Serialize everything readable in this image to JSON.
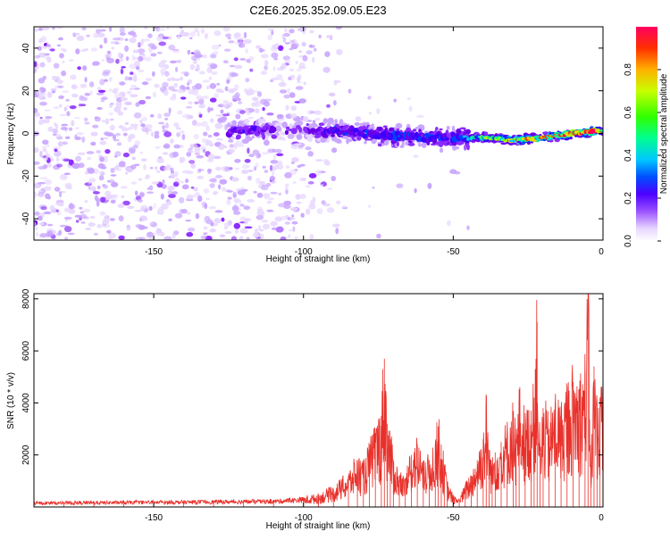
{
  "title": "C2E6.2025.352.09.05.E23",
  "colorbar": {
    "label": "Normalized spectral amplitude",
    "ticks": [
      0.0,
      0.2,
      0.4,
      0.6,
      0.8
    ],
    "tick_labels": [
      "0.0",
      "0.2",
      "0.4",
      "0.6",
      "0.8"
    ],
    "range": [
      0,
      1
    ]
  },
  "chart_data": [
    {
      "type": "heatmap",
      "xlabel": "Height of straight line (km)",
      "ylabel": "Frequency (Hz)",
      "xlim": [
        -190,
        0
      ],
      "ylim": [
        -50,
        50
      ],
      "xticks": [
        -150,
        -100,
        -50,
        0
      ],
      "xtick_labels": [
        "-150",
        "-100",
        "-50",
        "0"
      ],
      "yticks": [
        -40,
        -20,
        0,
        20,
        40
      ],
      "ytick_labels": [
        "-40",
        "-20",
        "0",
        "20",
        "40"
      ],
      "colormap": [
        "#ffffff",
        "#e8d8ff",
        "#c9a6ff",
        "#8a2bff",
        "#6a00e8",
        "#3c00ff",
        "#0040ff",
        "#00c8ff",
        "#00ff90",
        "#a0ff00",
        "#ffd000",
        "#ff4000",
        "#ff0050"
      ],
      "ridge": [
        {
          "x": -125,
          "y": 1,
          "amp": 0.35
        },
        {
          "x": -100,
          "y": 2,
          "amp": 0.25
        },
        {
          "x": -90,
          "y": 1,
          "amp": 0.4
        },
        {
          "x": -80,
          "y": 0,
          "amp": 0.4
        },
        {
          "x": -70,
          "y": -1,
          "amp": 0.45
        },
        {
          "x": -60,
          "y": -2,
          "amp": 0.45
        },
        {
          "x": -50,
          "y": -2,
          "amp": 0.4
        },
        {
          "x": -40,
          "y": -2,
          "amp": 0.65
        },
        {
          "x": -30,
          "y": -3,
          "amp": 0.75
        },
        {
          "x": -20,
          "y": -2,
          "amp": 0.75
        },
        {
          "x": -10,
          "y": 0,
          "amp": 0.9
        },
        {
          "x": -3,
          "y": 1,
          "amp": 0.95
        },
        {
          "x": 0,
          "y": 1,
          "amp": 0.8
        }
      ]
    },
    {
      "type": "line",
      "xlabel": "Height of straight line (km)",
      "ylabel": "SNR (10 * v/v)",
      "xlim": [
        -190,
        0
      ],
      "ylim": [
        0,
        8200
      ],
      "xticks": [
        -150,
        -100,
        -50,
        0
      ],
      "xtick_labels": [
        "-150",
        "-100",
        "-50",
        "0"
      ],
      "yticks": [
        2000,
        4000,
        6000,
        8000
      ],
      "ytick_labels": [
        "2000",
        "4000",
        "6000",
        "8000"
      ],
      "color": "#e8302a",
      "series": [
        {
          "x": [
            -190,
            -180,
            -170,
            -160,
            -150,
            -140,
            -130,
            -120,
            -110,
            -100,
            -95,
            -90,
            -85,
            -82,
            -80,
            -78,
            -76,
            -74,
            -73,
            -72,
            -71,
            -70,
            -68,
            -66,
            -64,
            -62,
            -60,
            -58,
            -56,
            -55,
            -54,
            -53,
            -52,
            -50,
            -48,
            -46,
            -44,
            -42,
            -40,
            -39,
            -38,
            -37,
            -36,
            -34,
            -32,
            -30,
            -29,
            -28,
            -26,
            -24,
            -23,
            -22,
            -21,
            -20,
            -18,
            -16,
            -14,
            -12,
            -10,
            -8,
            -6,
            -5,
            -4,
            -3,
            -2,
            -1,
            0
          ],
          "y": [
            180,
            190,
            200,
            210,
            220,
            230,
            240,
            250,
            260,
            350,
            450,
            700,
            1200,
            1800,
            1500,
            2200,
            2800,
            3500,
            5700,
            3200,
            2600,
            1800,
            1200,
            1000,
            2000,
            2400,
            1500,
            1800,
            2400,
            3100,
            2400,
            1600,
            900,
            400,
            300,
            800,
            1200,
            1800,
            2600,
            3900,
            2200,
            1600,
            2100,
            2500,
            2900,
            3600,
            2600,
            4100,
            3200,
            3700,
            4200,
            7100,
            2100,
            3800,
            3000,
            4000,
            3500,
            4200,
            4800,
            4500,
            5200,
            8200,
            1600,
            5400,
            3800,
            4200,
            3900
          ]
        }
      ]
    }
  ]
}
